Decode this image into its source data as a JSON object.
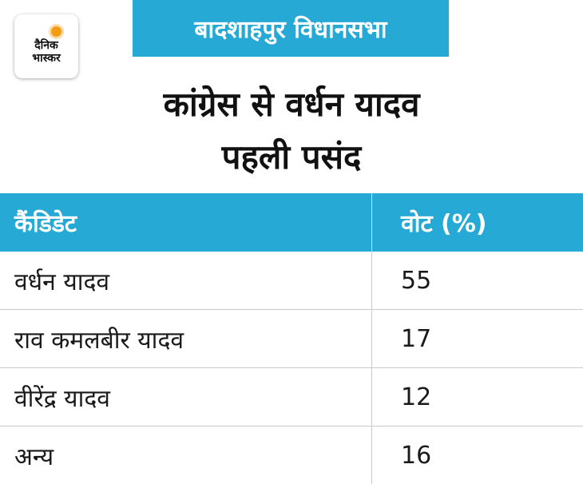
{
  "logo": {
    "line1": "दैनिक",
    "line2": "भास्कर"
  },
  "tag": "बादशाहपुर विधानसभा",
  "headline": [
    "कांग्रेस से वर्धन यादव",
    "पहली पसंद"
  ],
  "chart_data": {
    "type": "table",
    "columns": [
      "कैंडिडेट",
      "वोट (%)"
    ],
    "rows": [
      [
        "वर्धन यादव",
        "55"
      ],
      [
        "राव कमलबीर यादव",
        "17"
      ],
      [
        "वीरेंद्र यादव",
        "12"
      ],
      [
        "अन्य",
        "16"
      ]
    ]
  },
  "colors": {
    "accent": "#27a9d6",
    "logo_sun": "#f39c12"
  },
  "icons": {
    "logo_icon": "sun-icon"
  }
}
